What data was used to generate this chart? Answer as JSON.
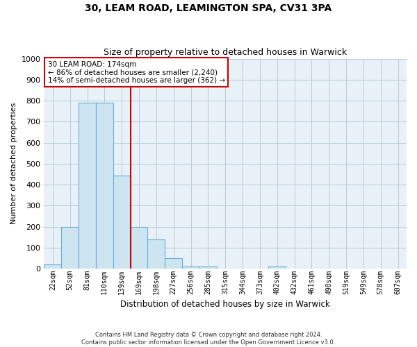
{
  "title": "30, LEAM ROAD, LEAMINGTON SPA, CV31 3PA",
  "subtitle": "Size of property relative to detached houses in Warwick",
  "xlabel": "Distribution of detached houses by size in Warwick",
  "ylabel": "Number of detached properties",
  "bar_labels": [
    "22sqm",
    "52sqm",
    "81sqm",
    "110sqm",
    "139sqm",
    "169sqm",
    "198sqm",
    "227sqm",
    "256sqm",
    "285sqm",
    "315sqm",
    "344sqm",
    "373sqm",
    "402sqm",
    "432sqm",
    "461sqm",
    "490sqm",
    "519sqm",
    "549sqm",
    "578sqm",
    "607sqm"
  ],
  "bar_values": [
    20,
    197,
    789,
    789,
    443,
    197,
    140,
    50,
    10,
    10,
    0,
    0,
    0,
    10,
    0,
    0,
    0,
    0,
    0,
    0,
    0
  ],
  "bar_color": "#cce5f0",
  "bar_edge_color": "#6aaed6",
  "ylim": [
    0,
    1000
  ],
  "yticks": [
    0,
    100,
    200,
    300,
    400,
    500,
    600,
    700,
    800,
    900,
    1000
  ],
  "property_line_color": "#cc0000",
  "property_line_index": 5,
  "annotation_title": "30 LEAM ROAD: 174sqm",
  "annotation_line1": "← 86% of detached houses are smaller (2,240)",
  "annotation_line2": "14% of semi-detached houses are larger (362) →",
  "annotation_box_color": "#ffffff",
  "annotation_box_edge": "#cc0000",
  "footnote1": "Contains HM Land Registry data © Crown copyright and database right 2024.",
  "footnote2": "Contains public sector information licensed under the Open Government Licence v3.0.",
  "bg_color": "#ffffff",
  "plot_bg_color": "#e8f0f8",
  "grid_color": "#b8ccd8"
}
